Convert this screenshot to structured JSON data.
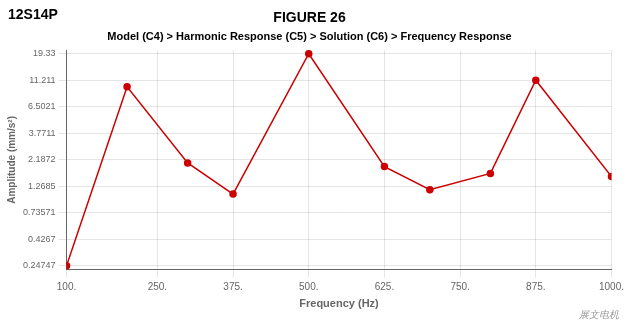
{
  "chart_data": {
    "type": "line",
    "title": "FIGURE 26",
    "subtitle": "Model (C4) > Harmonic Response (C5) > Solution (C6) > Frequency Response",
    "annotations": [
      "12S14P",
      "展文电机"
    ],
    "xlabel": "Frequency (Hz)",
    "ylabel": "Amplitude (mm/s²)",
    "x": [
      100,
      200,
      300,
      375,
      500,
      625,
      700,
      800,
      875,
      1000
    ],
    "values": [
      0.24747,
      9.8,
      2.05,
      1.08,
      19.33,
      1.9,
      1.18,
      1.65,
      11.211,
      1.55
    ],
    "color": "#cc0000",
    "marker": "circle",
    "log": "y",
    "xlim": [
      100,
      1000
    ],
    "xticks": [
      {
        "value": 100,
        "label": "100."
      },
      {
        "value": 250,
        "label": "250."
      },
      {
        "value": 375,
        "label": "375."
      },
      {
        "value": 500,
        "label": "500."
      },
      {
        "value": 625,
        "label": "625."
      },
      {
        "value": 750,
        "label": "750."
      },
      {
        "value": 875,
        "label": "875."
      },
      {
        "value": 1000,
        "label": "1000."
      }
    ],
    "ylim": [
      0.2276724,
      20.8764
    ],
    "yticks": [
      0.24747,
      0.4267,
      0.73571,
      1.2685,
      2.1872,
      3.7711,
      6.5021,
      11.211,
      19.33
    ],
    "grid": true
  }
}
